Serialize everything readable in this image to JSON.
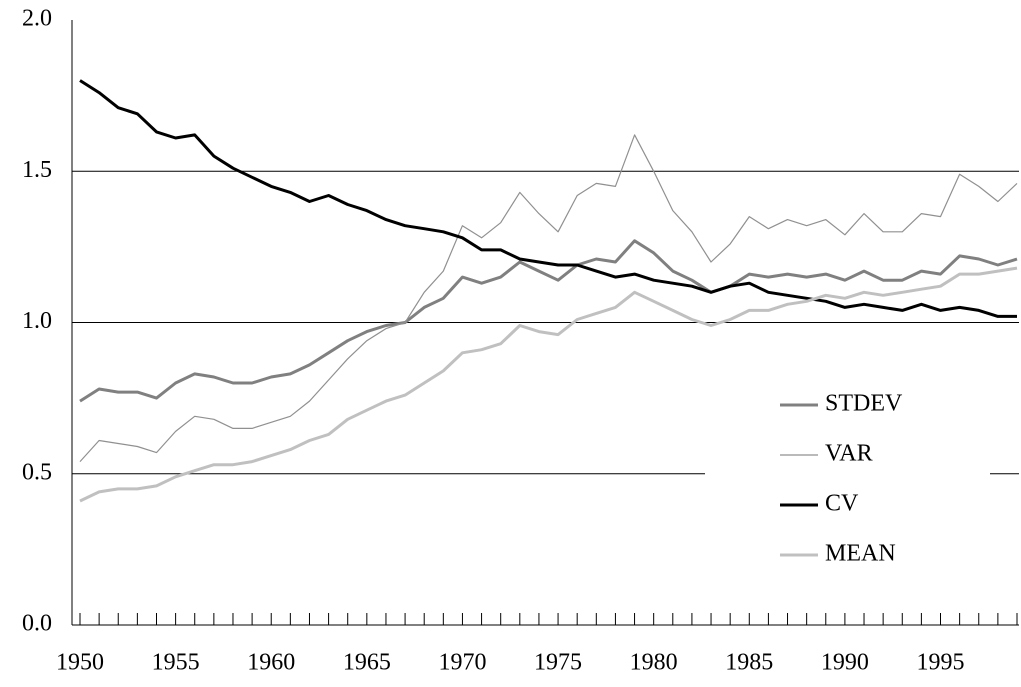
{
  "chart_data": {
    "type": "line",
    "x": [
      1950,
      1951,
      1952,
      1953,
      1954,
      1955,
      1956,
      1957,
      1958,
      1959,
      1960,
      1961,
      1962,
      1963,
      1964,
      1965,
      1966,
      1967,
      1968,
      1969,
      1970,
      1971,
      1972,
      1973,
      1974,
      1975,
      1976,
      1977,
      1978,
      1979,
      1980,
      1981,
      1982,
      1983,
      1984,
      1985,
      1986,
      1987,
      1988,
      1989,
      1990,
      1991,
      1992,
      1993,
      1994,
      1995,
      1996,
      1997,
      1998,
      1999
    ],
    "xlim": [
      1950,
      1999
    ],
    "xticks": [
      1950,
      1955,
      1960,
      1965,
      1970,
      1975,
      1980,
      1985,
      1990,
      1995
    ],
    "ylim": [
      0,
      2
    ],
    "yticks": [
      {
        "value": 0,
        "label": "0.0"
      },
      {
        "value": 0.5,
        "label": "0.5"
      },
      {
        "value": 1,
        "label": "1.0"
      },
      {
        "value": 1.5,
        "label": "1.5"
      },
      {
        "value": 2,
        "label": "2.0"
      }
    ],
    "grid": true,
    "legend": "right",
    "series": [
      {
        "name": "STDEV",
        "color": "#808080",
        "width": 3,
        "values": [
          0.74,
          0.78,
          0.77,
          0.77,
          0.75,
          0.8,
          0.83,
          0.82,
          0.8,
          0.8,
          0.82,
          0.83,
          0.86,
          0.9,
          0.94,
          0.97,
          0.99,
          1.0,
          1.05,
          1.08,
          1.15,
          1.13,
          1.15,
          1.2,
          1.17,
          1.14,
          1.19,
          1.21,
          1.2,
          1.27,
          1.23,
          1.17,
          1.14,
          1.1,
          1.12,
          1.16,
          1.15,
          1.16,
          1.15,
          1.16,
          1.14,
          1.17,
          1.14,
          1.14,
          1.17,
          1.16,
          1.22,
          1.21,
          1.19,
          1.21
        ]
      },
      {
        "name": "VAR",
        "color": "#909090",
        "width": 1.2,
        "values": [
          0.54,
          0.61,
          0.6,
          0.59,
          0.57,
          0.64,
          0.69,
          0.68,
          0.65,
          0.65,
          0.67,
          0.69,
          0.74,
          0.81,
          0.88,
          0.94,
          0.98,
          1.0,
          1.1,
          1.17,
          1.32,
          1.28,
          1.33,
          1.43,
          1.36,
          1.3,
          1.42,
          1.46,
          1.45,
          1.62,
          1.5,
          1.37,
          1.3,
          1.2,
          1.26,
          1.35,
          1.31,
          1.34,
          1.32,
          1.34,
          1.29,
          1.36,
          1.3,
          1.3,
          1.36,
          1.35,
          1.49,
          1.45,
          1.4,
          1.46
        ]
      },
      {
        "name": "CV",
        "color": "#000000",
        "width": 3,
        "values": [
          1.8,
          1.76,
          1.71,
          1.69,
          1.63,
          1.61,
          1.62,
          1.55,
          1.51,
          1.48,
          1.45,
          1.43,
          1.4,
          1.42,
          1.39,
          1.37,
          1.34,
          1.32,
          1.31,
          1.3,
          1.28,
          1.24,
          1.24,
          1.21,
          1.2,
          1.19,
          1.19,
          1.17,
          1.15,
          1.16,
          1.14,
          1.13,
          1.12,
          1.1,
          1.12,
          1.13,
          1.1,
          1.09,
          1.08,
          1.07,
          1.05,
          1.06,
          1.05,
          1.04,
          1.06,
          1.04,
          1.05,
          1.04,
          1.02,
          1.02
        ]
      },
      {
        "name": "MEAN",
        "color": "#c0c0c0",
        "width": 3,
        "values": [
          0.41,
          0.44,
          0.45,
          0.45,
          0.46,
          0.49,
          0.51,
          0.53,
          0.53,
          0.54,
          0.56,
          0.58,
          0.61,
          0.63,
          0.68,
          0.71,
          0.74,
          0.76,
          0.8,
          0.84,
          0.9,
          0.91,
          0.93,
          0.99,
          0.97,
          0.96,
          1.01,
          1.03,
          1.05,
          1.1,
          1.07,
          1.04,
          1.01,
          0.99,
          1.01,
          1.04,
          1.04,
          1.06,
          1.07,
          1.09,
          1.08,
          1.1,
          1.09,
          1.1,
          1.11,
          1.12,
          1.16,
          1.16,
          1.17,
          1.18
        ]
      }
    ]
  }
}
